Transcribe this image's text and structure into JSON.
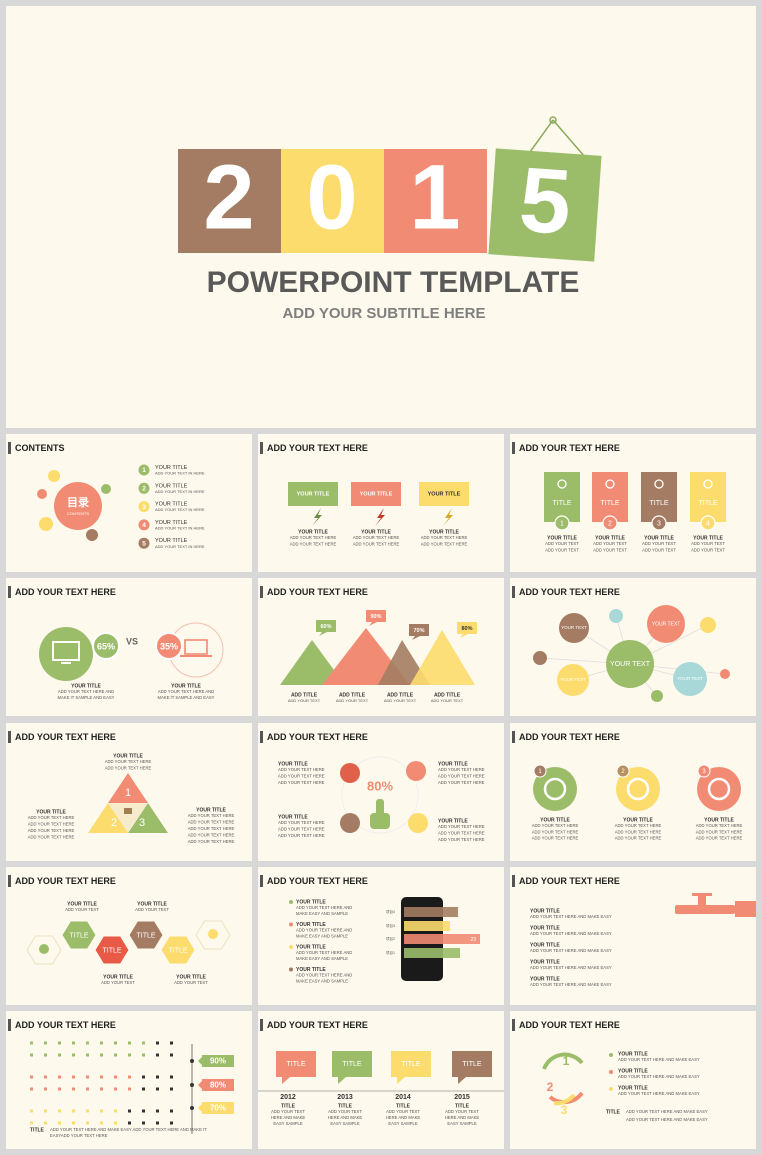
{
  "hero": {
    "digits": [
      "2",
      "0",
      "1",
      "5"
    ],
    "title": "POWERPOINT TEMPLATE",
    "subtitle": "ADD YOUR SUBTITLE HERE"
  },
  "slides": [
    {
      "heading": "CONTENTS",
      "badge": "目录",
      "badge_sub": "CONTENTS",
      "items": [
        {
          "num": "1",
          "title": "YOUR TITLE",
          "text": "ADD YOUR TEXT IN HERE"
        },
        {
          "num": "2",
          "title": "YOUR TITLE",
          "text": "ADD YOUR TEXT IN HERE"
        },
        {
          "num": "3",
          "title": "YOUR TITLE",
          "text": "ADD YOUR TEXT IN HERE"
        },
        {
          "num": "4",
          "title": "YOUR TITLE",
          "text": "ADD YOUR TEXT IN HERE"
        },
        {
          "num": "5",
          "title": "YOUR TITLE",
          "text": "ADD YOUR TEXT IN HERE"
        }
      ]
    },
    {
      "heading": "ADD YOUR TEXT HERE",
      "items": [
        {
          "label": "YOUR TITLE",
          "title": "YOUR TITLE",
          "lines": [
            "ADD YOUR TEXT HERE",
            "ADD YOUR TEXT HERE"
          ]
        },
        {
          "label": "YOUR TITLE",
          "title": "YOUR TITLE",
          "lines": [
            "ADD YOUR TEXT HERE",
            "ADD YOUR TEXT HERE"
          ]
        },
        {
          "label": "YOUR TITLE",
          "title": "YOUR TITLE",
          "lines": [
            "ADD YOUR TEXT HERE",
            "ADD YOUR TEXT HERE"
          ]
        }
      ]
    },
    {
      "heading": "ADD YOUR TEXT HERE",
      "items": [
        {
          "label": "TITLE",
          "num": "1",
          "title": "YOUR TITLE",
          "lines": [
            "ADD YOUR TEXT",
            "ADD YOUR TEXT"
          ]
        },
        {
          "label": "TITLE",
          "num": "2",
          "title": "YOUR TITLE",
          "lines": [
            "ADD YOUR TEXT",
            "ADD YOUR TEXT"
          ]
        },
        {
          "label": "TITLE",
          "num": "3",
          "title": "YOUR TITLE",
          "lines": [
            "ADD YOUR TEXT",
            "ADD YOUR TEXT"
          ]
        },
        {
          "label": "TITLE",
          "num": "4",
          "title": "YOUR TITLE",
          "lines": [
            "ADD YOUR TEXT",
            "ADD YOUR TEXT"
          ]
        }
      ]
    },
    {
      "heading": "ADD YOUR TEXT HERE",
      "vs": "VS",
      "items": [
        {
          "pct": "65%",
          "title": "YOUR TITLE",
          "lines": [
            "ADD YOUR TEXT HERE AND",
            "MAKE IT SAMPLE AND EASY"
          ]
        },
        {
          "pct": "35%",
          "title": "YOUR TITLE",
          "lines": [
            "ADD YOUR TEXT HERE AND",
            "MAKE IT SAMPLE AND EASY"
          ]
        }
      ]
    },
    {
      "heading": "ADD YOUR TEXT HERE",
      "items": [
        {
          "pct": "60%",
          "title": "ADD TITLE",
          "text": "ADD YOUR TEXT"
        },
        {
          "pct": "90%",
          "title": "ADD TITLE",
          "text": "ADD YOUR TEXT"
        },
        {
          "pct": "70%",
          "title": "ADD TITLE",
          "text": "ADD YOUR TEXT"
        },
        {
          "pct": "80%",
          "title": "ADD TITLE",
          "text": "ADD YOUR TEXT"
        }
      ]
    },
    {
      "heading": "ADD YOUR TEXT HERE",
      "bubbles": [
        "YOUR TEXT",
        "YOUR TEXT",
        "YOUR TEXT",
        "YOUR TEXT",
        "YOUR TEXT"
      ]
    },
    {
      "heading": "ADD YOUR TEXT HERE",
      "nums": [
        "1",
        "2",
        "3"
      ],
      "blocks": [
        {
          "title": "YOUR TITLE",
          "lines": [
            "ADD YOUR TEXT HERE",
            "ADD YOUR TEXT HERE"
          ]
        },
        {
          "title": "YOUR TITLE",
          "lines": [
            "ADD YOUR TEXT HERE",
            "ADD YOUR TEXT HERE",
            "ADD YOUR TEXT HERE",
            "ADD YOUR TEXT HERE"
          ]
        },
        {
          "title": "YOUR TITLE",
          "lines": [
            "ADD YOUR TEXT HERE",
            "ADD YOUR TEXT HERE",
            "ADD YOUR TEXT HERE",
            "ADD YOUR TEXT HERE",
            "ADD YOUR TEXT HERE"
          ]
        }
      ]
    },
    {
      "heading": "ADD YOUR TEXT HERE",
      "center": "80%",
      "blocks": [
        {
          "title": "YOUR TITLE",
          "lines": [
            "ADD YOUR TEXT HERE",
            "ADD YOUR TEXT HERE",
            "ADD YOUR TEXT HERE"
          ]
        },
        {
          "title": "YOUR TITLE",
          "lines": [
            "ADD YOUR TEXT HERE",
            "ADD YOUR TEXT HERE",
            "ADD YOUR TEXT HERE"
          ]
        },
        {
          "title": "YOUR TITLE",
          "lines": [
            "ADD YOUR TEXT HERE",
            "ADD YOUR TEXT HERE",
            "ADD YOUR TEXT HERE"
          ]
        },
        {
          "title": "YOUR TITLE",
          "lines": [
            "ADD YOUR TEXT HERE",
            "ADD YOUR TEXT HERE",
            "ADD YOUR TEXT HERE"
          ]
        }
      ]
    },
    {
      "heading": "ADD YOUR TEXT HERE",
      "items": [
        {
          "num": "1",
          "title": "YOUR TITLE",
          "lines": [
            "ADD YOUR TEXT HERE",
            "ADD YOUR TEXT HERE",
            "ADD YOUR TEXT HERE"
          ]
        },
        {
          "num": "2",
          "title": "YOUR TITLE",
          "lines": [
            "ADD YOUR TEXT HERE",
            "ADD YOUR TEXT HERE",
            "ADD YOUR TEXT HERE"
          ]
        },
        {
          "num": "3",
          "title": "YOUR TITLE",
          "lines": [
            "ADD YOUR TEXT HERE",
            "ADD YOUR TEXT HERE",
            "ADD YOUR TEXT HERE"
          ]
        }
      ]
    },
    {
      "heading": "ADD YOUR TEXT HERE",
      "hexes": [
        "TITLE",
        "TITLE",
        "TITLE",
        "TITLE"
      ],
      "labels": [
        {
          "title": "YOUR TITLE",
          "text": "ADD YOUR TEXT"
        },
        {
          "title": "YOUR TITLE",
          "text": "ADD YOUR TEXT"
        },
        {
          "title": "YOUR TITLE",
          "text": "ADD YOUR TEXT"
        },
        {
          "title": "YOUR TITLE",
          "text": "ADD YOUR TEXT"
        }
      ]
    },
    {
      "heading": "ADD YOUR TEXT HERE",
      "items": [
        {
          "title": "YOUR TITLE",
          "lines": [
            "ADD YOUR TEXT HERE AND",
            "MAKE EASY AND SAMPLE"
          ]
        },
        {
          "title": "YOUR TITLE",
          "lines": [
            "ADD YOUR TEXT HERE AND",
            "MAKE EASY AND SAMPLE"
          ]
        },
        {
          "title": "YOUR TITLE",
          "lines": [
            "ADD YOUR TEXT HERE AND",
            "MAKE EASY AND SAMPLE"
          ]
        },
        {
          "title": "YOUR TITLE",
          "lines": [
            "ADD YOUR TEXT HERE AND",
            "MAKE EASY AND SAMPLE"
          ]
        }
      ],
      "bars": [
        "项目4",
        "项目3",
        "项目2",
        "项目1"
      ],
      "bar_value": "23"
    },
    {
      "heading": "ADD YOUR TEXT HERE",
      "items": [
        {
          "title": "YOUR TITLE",
          "text": "ADD YOUR TEXT HERE AND MAKE EASY"
        },
        {
          "title": "YOUR TITLE",
          "text": "ADD YOUR TEXT HERE AND MAKE EASY"
        },
        {
          "title": "YOUR TITLE",
          "text": "ADD YOUR TEXT HERE AND MAKE EASY"
        },
        {
          "title": "YOUR TITLE",
          "text": "ADD YOUR TEXT HERE AND MAKE EASY"
        },
        {
          "title": "YOUR TITLE",
          "text": "ADD YOUR TEXT HERE AND MAKE EASY"
        }
      ]
    },
    {
      "heading": "ADD YOUR TEXT HERE",
      "tags": [
        "90%",
        "80%",
        "70%"
      ],
      "footer_title": "TITLE",
      "footer_lines": [
        "ADD YOUR TEXT HERE AND MAKE EASY ADD YOUR TEXT HERE AND MAKE IT",
        "EASYADD YOUR TEXT HERE"
      ]
    },
    {
      "heading": "ADD YOUR TEXT HERE",
      "items": [
        {
          "label": "TITLE",
          "year": "2012",
          "title": "TITLE",
          "lines": [
            "ADD YOUR TEXT",
            "HERE AND MAKE",
            "EASY  SAMPLE"
          ]
        },
        {
          "label": "TITLE",
          "year": "2013",
          "title": "TITLE",
          "lines": [
            "ADD YOUR TEXT",
            "HERE AND MAKE",
            "EASY  SAMPLE"
          ]
        },
        {
          "label": "TITLE",
          "year": "2014",
          "title": "TITLE",
          "lines": [
            "ADD YOUR TEXT",
            "HERE AND MAKE",
            "EASY  SAMPLE"
          ]
        },
        {
          "label": "TITLE",
          "year": "2015",
          "title": "TITLE",
          "lines": [
            "ADD YOUR TEXT",
            "HERE AND MAKE",
            "EASY  SAMPLE"
          ]
        }
      ]
    },
    {
      "heading": "ADD YOUR TEXT HERE",
      "nums": [
        "1",
        "2",
        "3"
      ],
      "items": [
        {
          "title": "YOUR TITLE",
          "text": "ADD YOUR TEXT HERE AND MAKE EASY"
        },
        {
          "title": "YOUR TITLE",
          "text": "ADD YOUR TEXT HERE AND MAKE EASY"
        },
        {
          "title": "YOUR TITLE",
          "text": "ADD YOUR TEXT HERE AND MAKE EASY"
        }
      ],
      "footer_title": "TITLE",
      "footer_lines": [
        "ADD YOUR TEXT HERE AND MAKE EASY",
        "ADD YOUR TEXT HERE AND MAKE EASY"
      ]
    }
  ]
}
